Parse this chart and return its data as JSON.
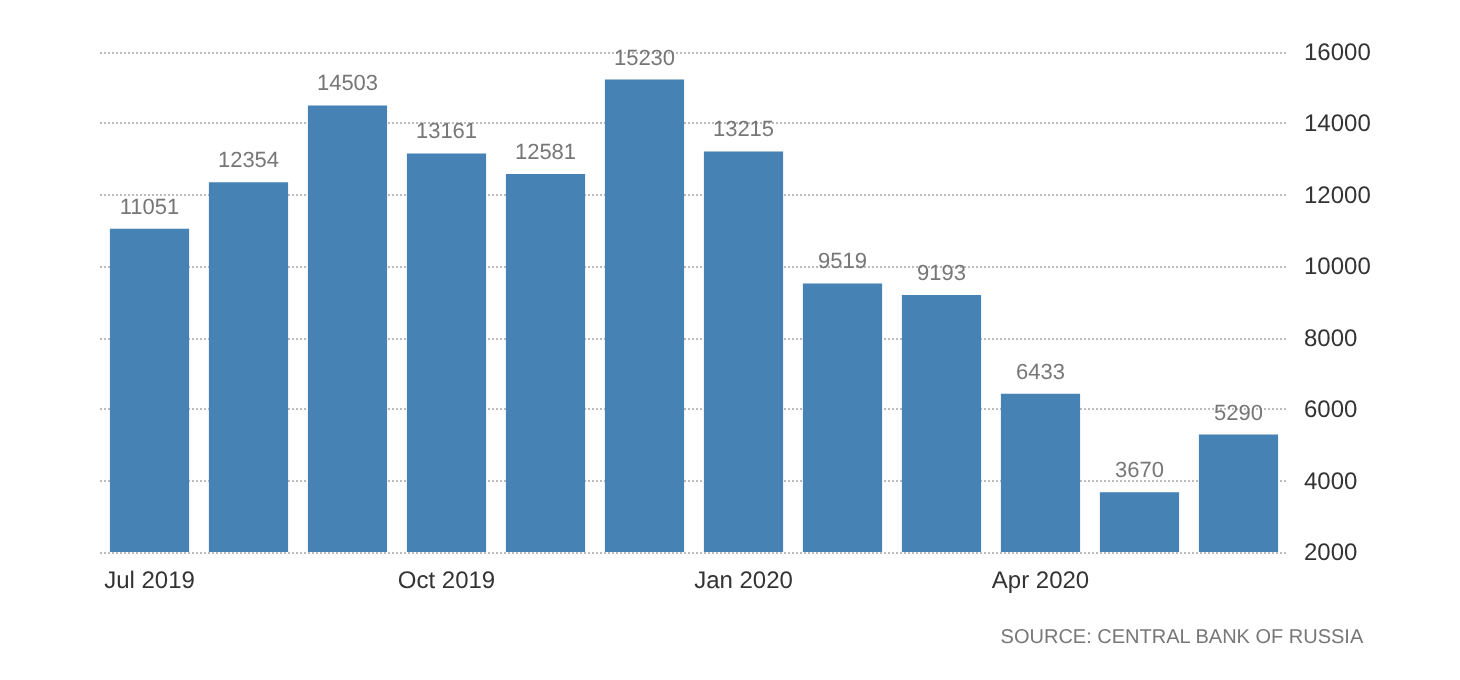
{
  "chart_data": {
    "type": "bar",
    "categories": [
      "Jul 2019",
      null,
      null,
      "Oct 2019",
      null,
      null,
      "Jan 2020",
      null,
      null,
      "Apr 2020",
      null,
      null
    ],
    "values": [
      11051,
      12354,
      14503,
      13161,
      12581,
      15230,
      13215,
      9519,
      9193,
      6433,
      3670,
      5290
    ],
    "color": "#4682b4",
    "ylim": [
      2000,
      16000
    ],
    "yticks": [
      2000,
      4000,
      6000,
      8000,
      10000,
      12000,
      14000,
      16000
    ],
    "grid": "y",
    "data_labels": true,
    "annotations": [
      "SOURCE: CENTRAL BANK OF RUSSIA"
    ]
  }
}
